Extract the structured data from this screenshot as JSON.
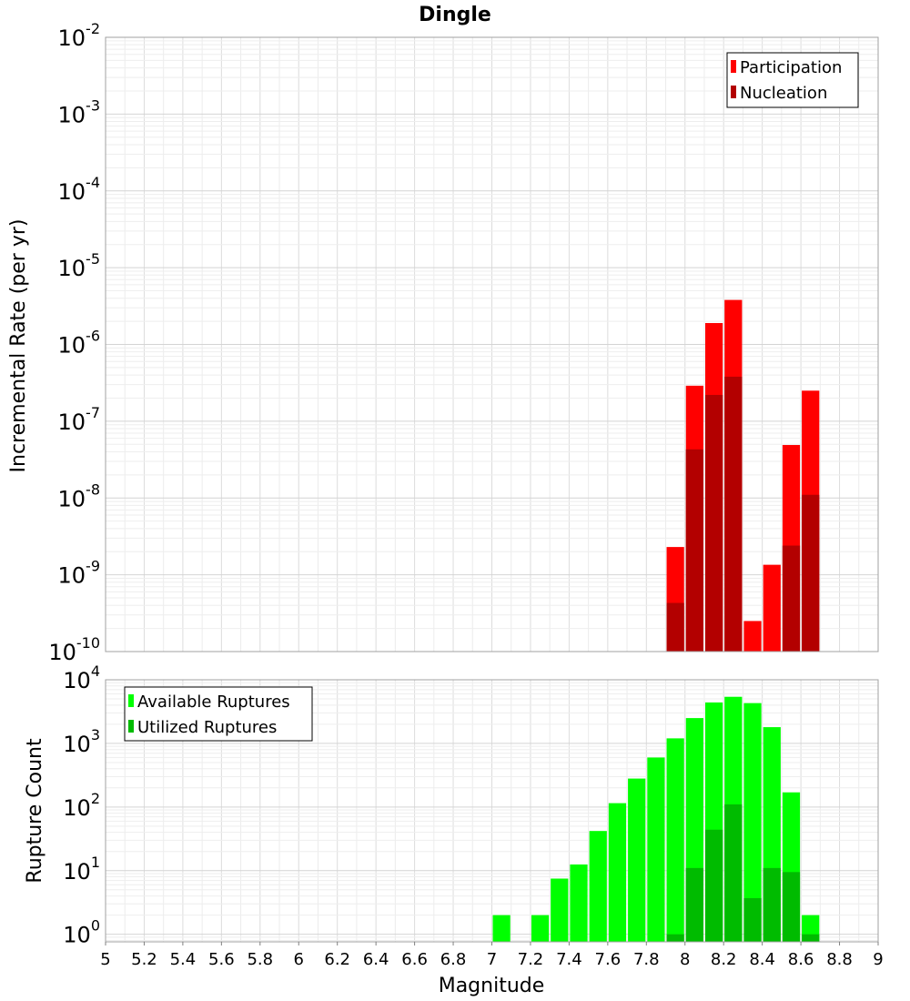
{
  "chart_data": [
    {
      "type": "bar",
      "title": "Dingle",
      "xlabel": "",
      "ylabel": "Incremental Rate (per yr)",
      "xlim": [
        5,
        9
      ],
      "ylim": [
        1e-10,
        0.01
      ],
      "yscale": "log",
      "grid": true,
      "bar_width": 0.1,
      "legend_position": "top-right",
      "y_tick_exponents": [
        -2,
        -3,
        -4,
        -5,
        -6,
        -7,
        -8,
        -9,
        -10
      ],
      "series": [
        {
          "name": "Participation",
          "color": "#ff0000",
          "x": [
            7.95,
            8.05,
            8.15,
            8.25,
            8.35,
            8.45,
            8.55,
            8.65
          ],
          "values": [
            2.3e-09,
            2.9e-07,
            1.9e-06,
            3.8e-06,
            2.5e-10,
            1.35e-09,
            4.9e-08,
            2.5e-07
          ]
        },
        {
          "name": "Nucleation",
          "color": "#b30000",
          "x": [
            7.95,
            8.05,
            8.15,
            8.25,
            8.55,
            8.65
          ],
          "values": [
            4.3e-10,
            4.3e-08,
            2.2e-07,
            3.8e-07,
            2.4e-09,
            1.1e-08
          ]
        }
      ]
    },
    {
      "type": "bar",
      "title": "",
      "xlabel": "Magnitude",
      "ylabel": "Rupture Count",
      "xlim": [
        5,
        9
      ],
      "ylim": [
        0.76,
        10000
      ],
      "yscale": "log",
      "grid": true,
      "bar_width": 0.1,
      "legend_position": "top-left",
      "y_tick_exponents": [
        4,
        3,
        2,
        1,
        0
      ],
      "x_ticks": [
        "5",
        "5.2",
        "5.4",
        "5.6",
        "5.8",
        "6",
        "6.2",
        "6.4",
        "6.6",
        "6.8",
        "7",
        "7.2",
        "7.4",
        "7.6",
        "7.8",
        "8",
        "8.2",
        "8.4",
        "8.6",
        "8.8",
        "9"
      ],
      "series": [
        {
          "name": "Available Ruptures",
          "color": "#00ff00",
          "x": [
            7.05,
            7.25,
            7.35,
            7.45,
            7.55,
            7.65,
            7.75,
            7.85,
            7.95,
            8.05,
            8.15,
            8.25,
            8.35,
            8.45,
            8.55,
            8.65
          ],
          "values": [
            2,
            2,
            7.5,
            12.5,
            42,
            115,
            280,
            600,
            1200,
            2500,
            4400,
            5400,
            4300,
            1800,
            170,
            2
          ]
        },
        {
          "name": "Utilized Ruptures",
          "color": "#00bb00",
          "x": [
            7.95,
            8.05,
            8.15,
            8.25,
            8.35,
            8.45,
            8.55,
            8.65
          ],
          "values": [
            1,
            11,
            44,
            110,
            3.7,
            11,
            9.5,
            1
          ]
        }
      ]
    }
  ]
}
